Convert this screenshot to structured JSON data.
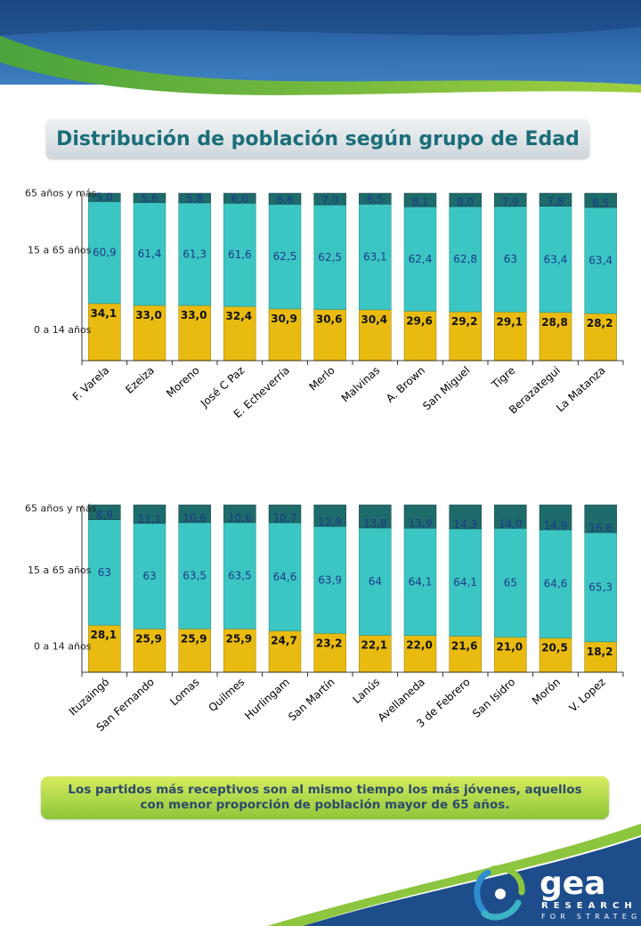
{
  "title": "Distribución de población según grupo de Edad",
  "note": "Los partidos más receptivos son al mismo tiempo los más jóvenes, aquellos con menor proporción de población mayor de 65 años.",
  "logo": {
    "brand": "gea",
    "tagline_1": "RESEARCH",
    "tagline_2": "FOR STRATEGY"
  },
  "colors": {
    "young": "#e9bb10",
    "middle": "#3cc6c3",
    "old": "#1e6b6b",
    "title": "#1a6e78",
    "note": "#2c4a6b"
  },
  "chart_data": [
    {
      "type": "bar",
      "stacked": true,
      "ylim": [
        0,
        100
      ],
      "grid": false,
      "categories": [
        "F. Varela",
        "Ezeiza",
        "Moreno",
        "José C Paz",
        "E. Echeverría",
        "Merlo",
        "Malvinas",
        "A. Brown",
        "San Miguel",
        "Tigre",
        "Berazategui",
        "La Matanza"
      ],
      "series": [
        {
          "name": "0 a 14 años",
          "values": [
            34.1,
            33.0,
            33.0,
            32.4,
            30.9,
            30.6,
            30.4,
            29.6,
            29.2,
            29.1,
            28.8,
            28.2
          ],
          "labels": [
            "34,1",
            "33,0",
            "33,0",
            "32,4",
            "30,9",
            "30,6",
            "30,4",
            "29,6",
            "29,2",
            "29,1",
            "28,8",
            "28,2"
          ]
        },
        {
          "name": "15 a 65 años",
          "values": [
            60.9,
            61.4,
            61.3,
            61.6,
            62.5,
            62.5,
            63.1,
            62.4,
            62.8,
            63,
            63.4,
            63.4
          ],
          "labels": [
            "60,9",
            "61,4",
            "61,3",
            "61,6",
            "62,5",
            "62,5",
            "63,1",
            "62,4",
            "62,8",
            "63",
            "63,4",
            "63,4"
          ]
        },
        {
          "name": "65 años y más",
          "values": [
            5.0,
            5.6,
            5.8,
            6.0,
            6.6,
            7.0,
            6.5,
            8.1,
            8.0,
            7.9,
            7.8,
            8.5
          ],
          "labels": [
            "5,0",
            "5,6",
            "5,8",
            "6,0",
            "6,6",
            "7,0",
            "6,5",
            "8,1",
            "8,0",
            "7,9",
            "7,8",
            "8,5"
          ]
        }
      ]
    },
    {
      "type": "bar",
      "stacked": true,
      "ylim": [
        0,
        100
      ],
      "grid": false,
      "categories": [
        "Ituzaingó",
        "San Fernando",
        "Lomas",
        "Quilmes",
        "Hurlingam",
        "San Martín",
        "Lanús",
        "Avellaneda",
        "3 de Febrero",
        "San Isidro",
        "Morón",
        "V. Lopez"
      ],
      "series": [
        {
          "name": "0 a 14 años",
          "values": [
            28.1,
            25.9,
            25.9,
            25.9,
            24.7,
            23.2,
            22.1,
            22.0,
            21.6,
            21.0,
            20.5,
            18.2
          ],
          "labels": [
            "28,1",
            "25,9",
            "25,9",
            "25,9",
            "24,7",
            "23,2",
            "22,1",
            "22,0",
            "21,6",
            "21,0",
            "20,5",
            "18,2"
          ]
        },
        {
          "name": "15 a 65 años",
          "values": [
            63,
            63,
            63.5,
            63.5,
            64.6,
            63.9,
            64,
            64.1,
            64.1,
            65,
            64.6,
            65.3
          ],
          "labels": [
            "63",
            "63",
            "63,5",
            "63,5",
            "64,6",
            "63,9",
            "64",
            "64,1",
            "64,1",
            "65",
            "64,6",
            "65,3"
          ]
        },
        {
          "name": "65 años y más",
          "values": [
            8.9,
            11.1,
            10.6,
            10.6,
            10.7,
            12.9,
            13.8,
            13.9,
            14.3,
            14.0,
            14.9,
            16.6
          ],
          "labels": [
            "8,9",
            "11,1",
            "10,6",
            "10,6",
            "10,7",
            "12,9",
            "13,8",
            "13,9",
            "14,3",
            "14,0",
            "14,9",
            "16,6"
          ]
        }
      ]
    }
  ]
}
